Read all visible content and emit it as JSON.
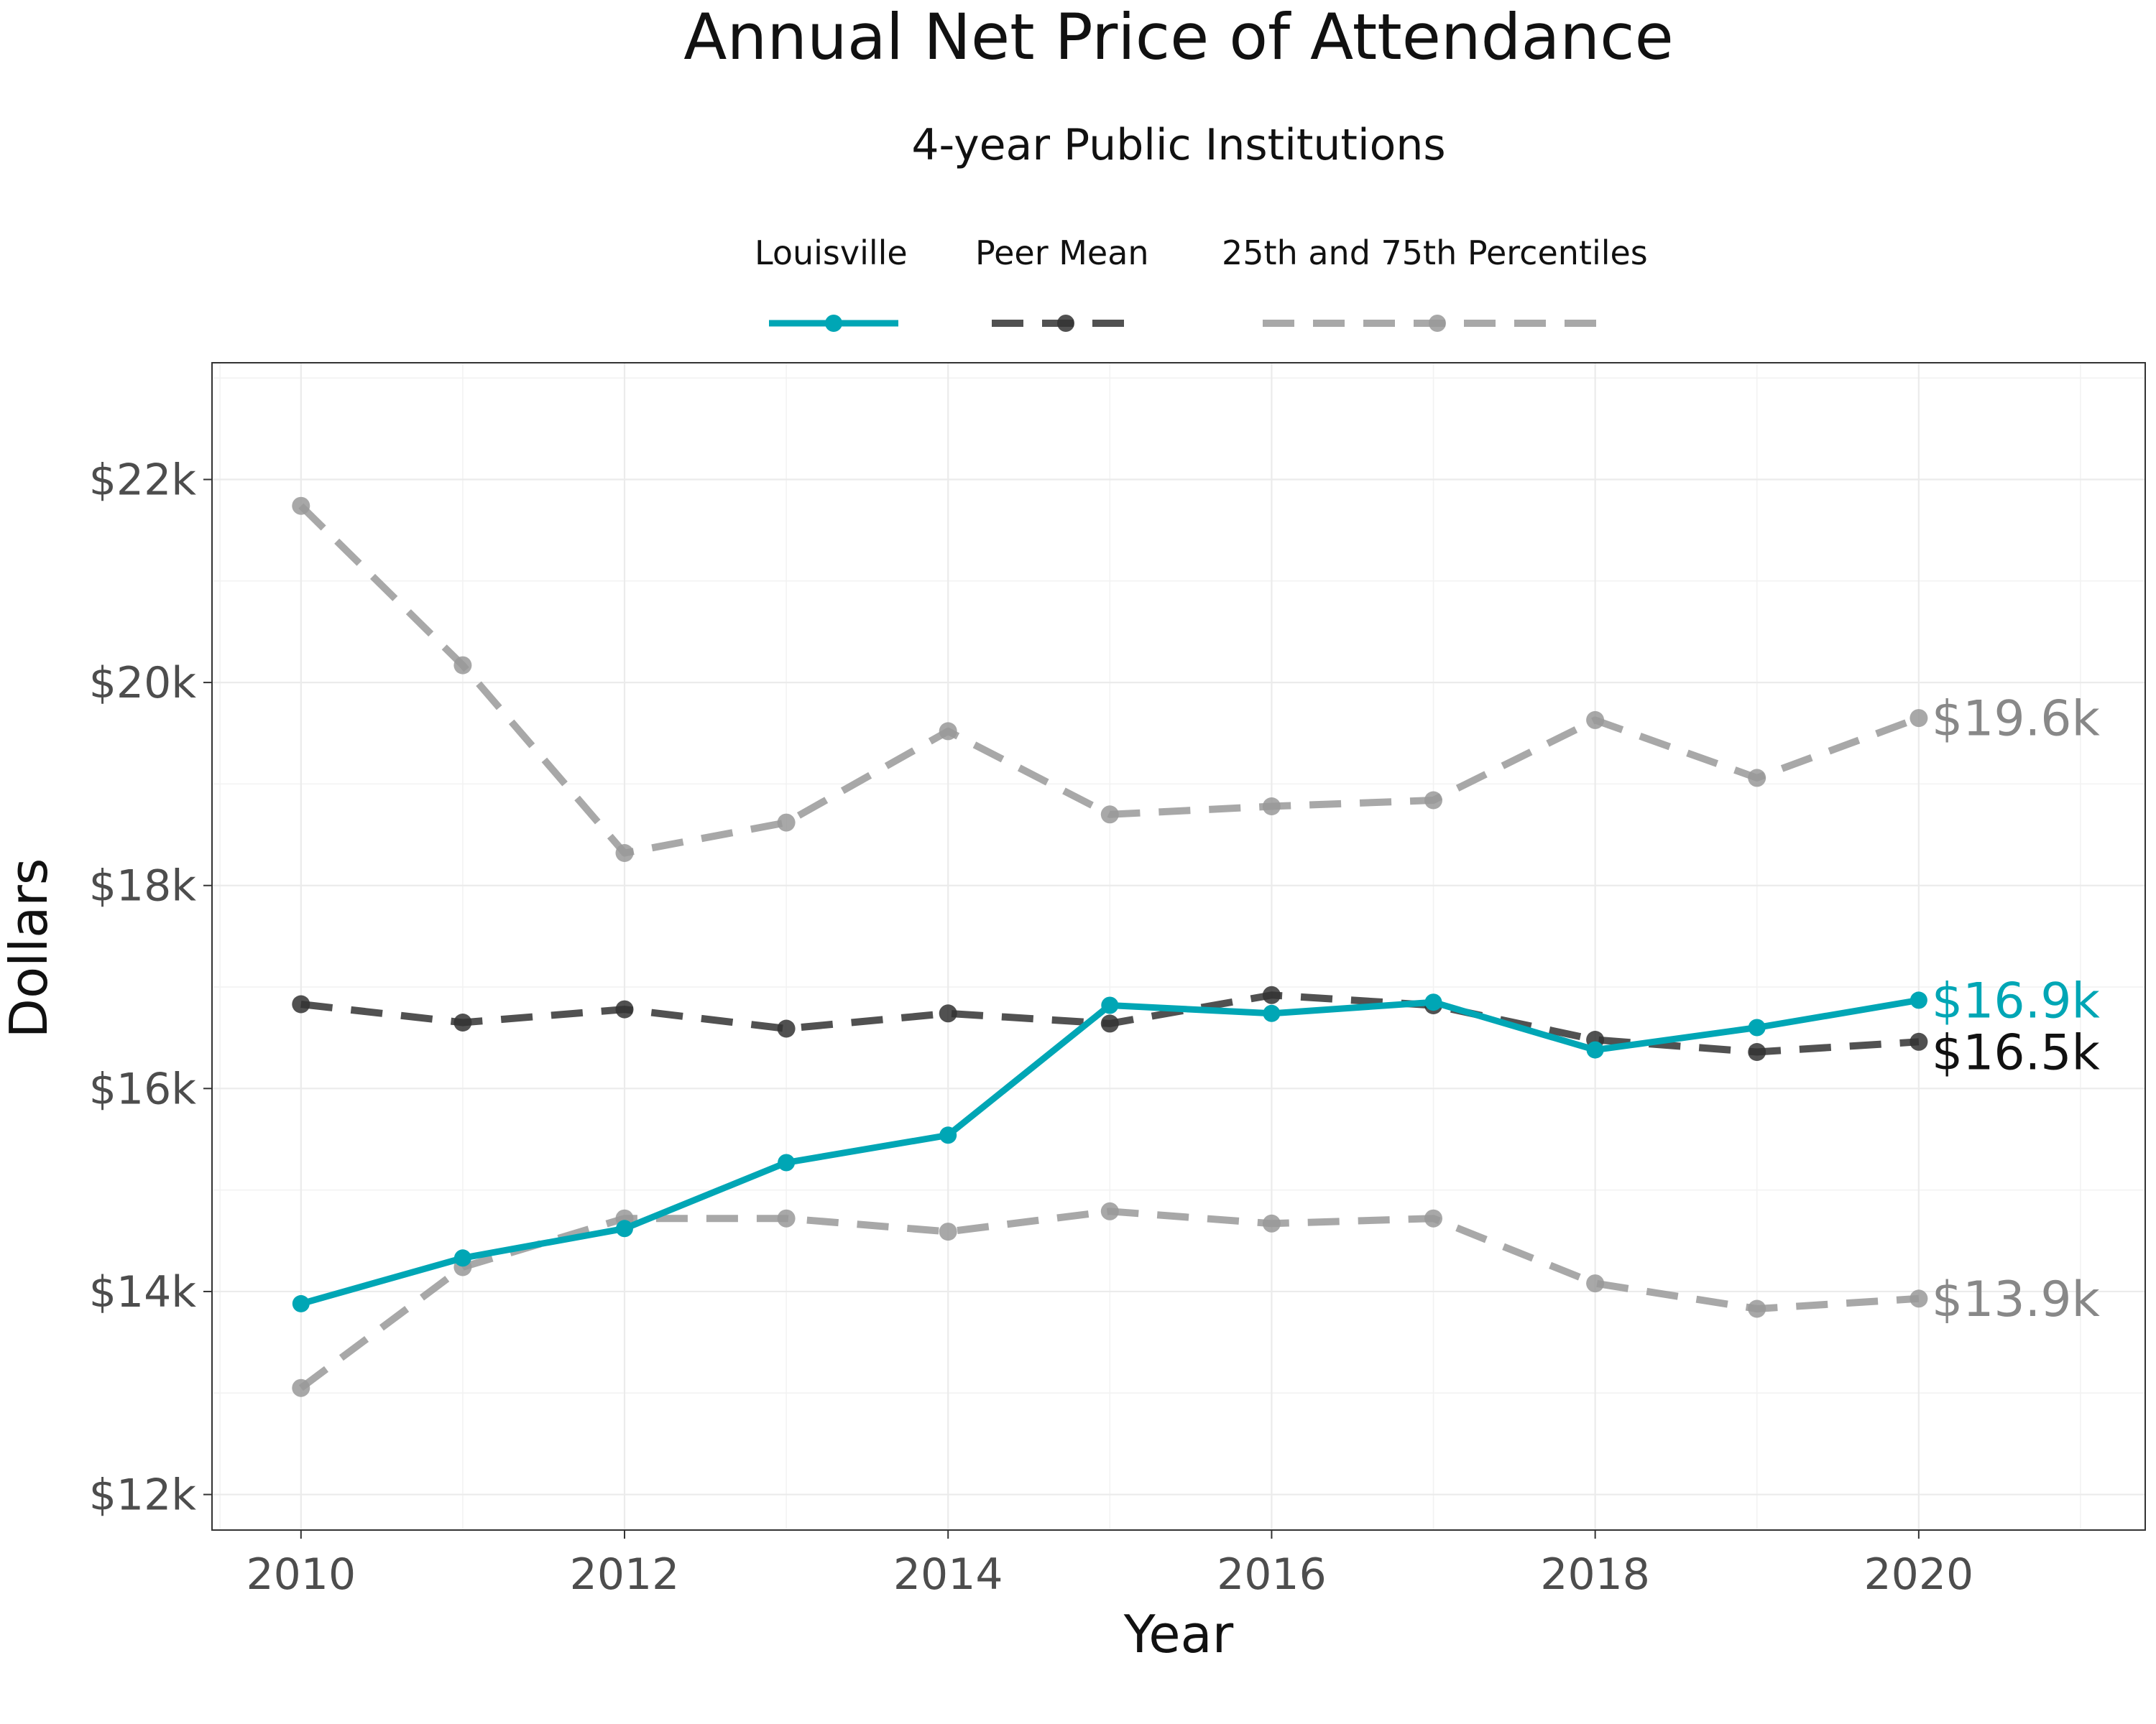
{
  "chart_data": {
    "type": "line",
    "title": "Annual Net Price of Attendance",
    "subtitle": "4-year Public Institutions",
    "xlabel": "Year",
    "ylabel": "Dollars",
    "xlim": [
      2009.45,
      2021.4
    ],
    "ylim": [
      11650,
      23150
    ],
    "x_ticks": [
      2010,
      2012,
      2014,
      2016,
      2018,
      2020
    ],
    "y_ticks": [
      12000,
      14000,
      16000,
      18000,
      20000,
      22000
    ],
    "y_tick_labels": [
      "$12k",
      "$14k",
      "$16k",
      "$18k",
      "$20k",
      "$22k"
    ],
    "grid": true,
    "legend_position": "top",
    "x": [
      2010,
      2011,
      2012,
      2013,
      2014,
      2015,
      2016,
      2017,
      2018,
      2019,
      2020
    ],
    "series": [
      {
        "name": "Louisville",
        "color": "#00a6b5",
        "line_style": "solid",
        "values": [
          13880,
          14330,
          14620,
          15270,
          15540,
          16820,
          16740,
          16850,
          16380,
          16600,
          16870
        ],
        "end_label": "$16.9k"
      },
      {
        "name": "Peer Mean",
        "color": "#333333",
        "line_style": "dashed",
        "values": [
          16830,
          16650,
          16780,
          16590,
          16740,
          16640,
          16920,
          16820,
          16480,
          16360,
          16460
        ],
        "end_label": "$16.5k"
      },
      {
        "name": "25th and 75th Percentiles",
        "color": "#999999",
        "line_style": "dashed",
        "values": [
          21740,
          20170,
          18320,
          18620,
          19520,
          18700,
          18780,
          18840,
          19630,
          19060,
          19650
        ],
        "end_label": "$19.6k"
      },
      {
        "name": "",
        "color": "#999999",
        "line_style": "dashed",
        "values": [
          13050,
          14240,
          14720,
          14720,
          14590,
          14790,
          14670,
          14720,
          14080,
          13830,
          13930
        ],
        "end_label": "$13.9k"
      }
    ],
    "legend": [
      "Louisville",
      "Peer Mean",
      "25th and 75th Percentiles"
    ],
    "end_label_colors": [
      "#00a6b5",
      "#111111",
      "#888888",
      "#888888"
    ]
  }
}
